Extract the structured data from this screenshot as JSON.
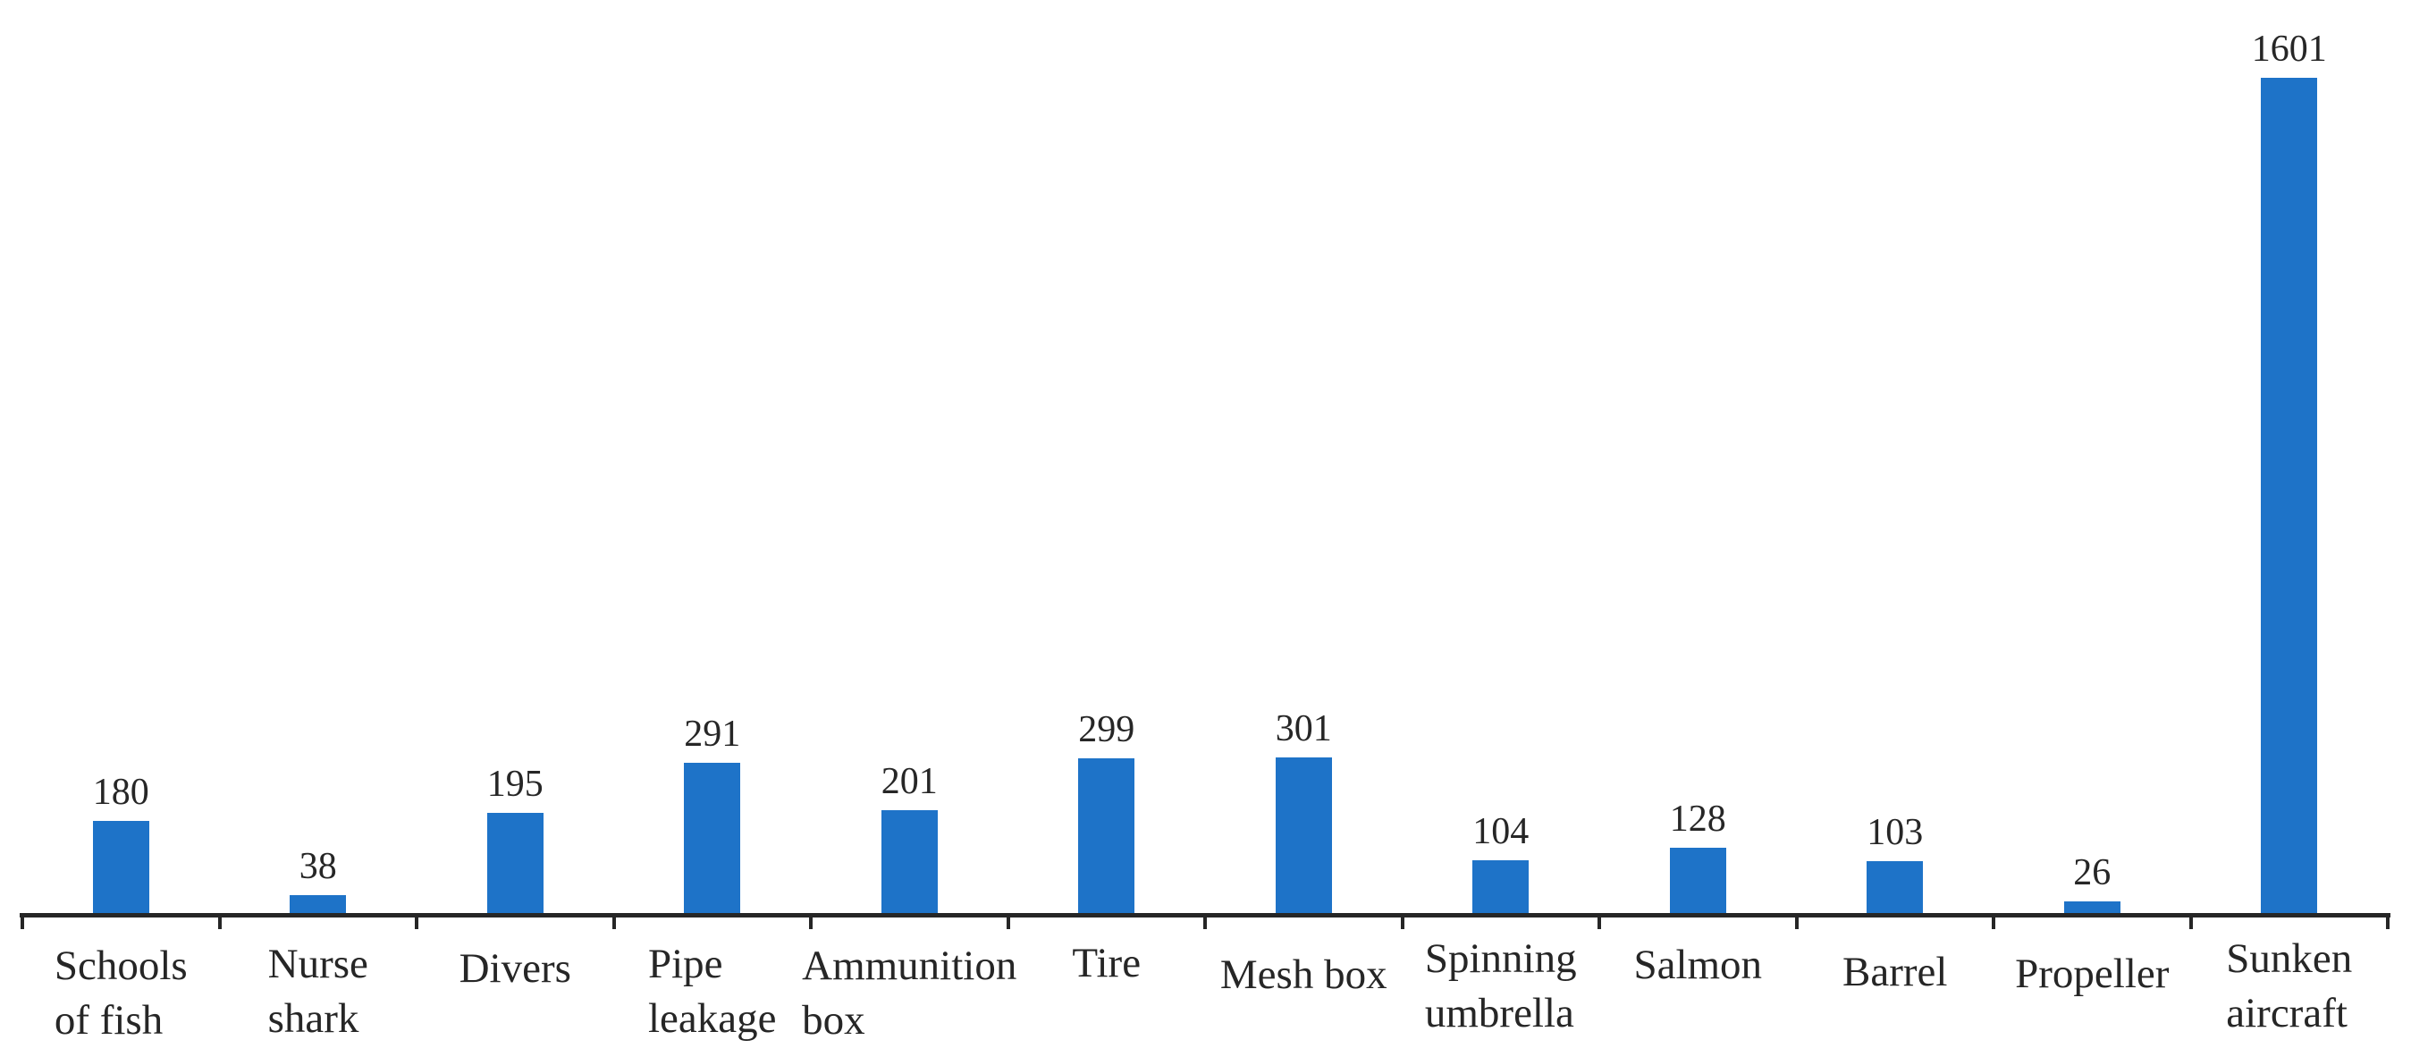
{
  "chart_data": {
    "type": "bar",
    "title": "",
    "xlabel": "",
    "ylabel": "",
    "categories": [
      "Schools of fish",
      "Nurse shark",
      "Divers",
      "Pipe leakage",
      "Ammunition box",
      "Tire",
      "Mesh box",
      "Spinning umbrella",
      "Salmon",
      "Barrel",
      "Propeller",
      "Sunken aircraft"
    ],
    "category_label_lines": [
      [
        "Schools",
        "of fish"
      ],
      [
        "Nurse",
        "shark"
      ],
      [
        "Divers"
      ],
      [
        "Pipe",
        "leakage"
      ],
      [
        "Ammunition",
        "box"
      ],
      [
        "Tire"
      ],
      [
        "Mesh box"
      ],
      [
        "Spinning",
        "umbrella"
      ],
      [
        "Salmon"
      ],
      [
        "Barrel"
      ],
      [
        "Propeller"
      ],
      [
        "Sunken",
        "aircraft"
      ]
    ],
    "values": [
      180,
      38,
      195,
      291,
      201,
      299,
      301,
      104,
      128,
      103,
      26,
      1601
    ],
    "data_labels_visible": true,
    "y_axis_visible": false,
    "grid": false,
    "legend": "none",
    "colors": {
      "bar": "#1e73c8",
      "axis": "#262626",
      "text": "#262626",
      "background": "#ffffff"
    }
  }
}
